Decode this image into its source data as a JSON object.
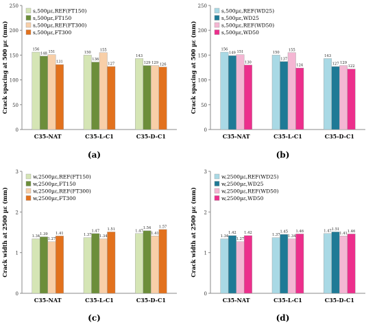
{
  "chart_data": [
    {
      "type": "bar",
      "panel_label": "(a)",
      "categories": [
        "C35-NAT",
        "C35-L-C1",
        "C35-D-C1"
      ],
      "ylabel": "Crack spacing at 500 µε (mm)",
      "xlabel": "",
      "ylim": [
        0,
        250
      ],
      "yticks": [
        "0",
        "50",
        "100",
        "150",
        "200",
        "250"
      ],
      "legend_position": "top-left",
      "series": [
        {
          "name": "s,500µε,REF(FT150)",
          "values": [
            156,
            150,
            143
          ],
          "labels": [
            "156",
            "150",
            "143"
          ],
          "color": "#d5e5b5"
        },
        {
          "name": "s,500µε,FT150",
          "values": [
            148,
            136,
            129
          ],
          "labels": [
            "148",
            "136",
            "129"
          ],
          "color": "#6c8e3a"
        },
        {
          "name": "s,500µε,REF(FT300)",
          "values": [
            151,
            155,
            129
          ],
          "labels": [
            "151",
            "155",
            "129"
          ],
          "color": "#f8cfa8"
        },
        {
          "name": "s,500µε,FT300",
          "values": [
            131,
            127,
            126
          ],
          "labels": [
            "131",
            "127",
            "126"
          ],
          "color": "#e2711d"
        }
      ]
    },
    {
      "type": "bar",
      "panel_label": "(b)",
      "categories": [
        "C35-NAT",
        "C35-L-C1",
        "C35-D-C1"
      ],
      "ylabel": "Crack spacing at 500 µε (mm)",
      "xlabel": "",
      "ylim": [
        0,
        250
      ],
      "yticks": [
        "0",
        "50",
        "100",
        "150",
        "200",
        "250"
      ],
      "legend_position": "top-left",
      "series": [
        {
          "name": "s,500µε,REF(WD25)",
          "values": [
            156,
            150,
            143
          ],
          "labels": [
            "156",
            "150",
            "143"
          ],
          "color": "#a9d9e5"
        },
        {
          "name": "s,500µε,WD25",
          "values": [
            149,
            137,
            127
          ],
          "labels": [
            "149",
            "137",
            "127"
          ],
          "color": "#1f7a96"
        },
        {
          "name": "s,500µε,REF(WD50)",
          "values": [
            151,
            155,
            129
          ],
          "labels": [
            "151",
            "155",
            "129"
          ],
          "color": "#f4b6d3"
        },
        {
          "name": "s,500µε,WD50",
          "values": [
            130,
            124,
            122
          ],
          "labels": [
            "130",
            "124",
            "122"
          ],
          "color": "#ec2f8c"
        }
      ]
    },
    {
      "type": "bar",
      "panel_label": "(c)",
      "categories": [
        "C35-NAT",
        "C35-L-C1",
        "C35-D-C1"
      ],
      "ylabel": "Crack width at 2500 µε (mm)",
      "xlabel": "",
      "ylim": [
        0,
        3
      ],
      "yticks": [
        "0",
        "1",
        "2",
        "3"
      ],
      "legend_position": "top-left",
      "series": [
        {
          "name": "w,2500µε,REF(FT150)",
          "values": [
            1.34,
            1.37,
            1.47
          ],
          "labels": [
            "1.34",
            "1.37",
            "1.47"
          ],
          "color": "#d5e5b5"
        },
        {
          "name": "w,2500µε,FT150",
          "values": [
            1.39,
            1.47,
            1.54
          ],
          "labels": [
            "1.39",
            "1.47",
            "1.54"
          ],
          "color": "#6c8e3a"
        },
        {
          "name": "w,2500µε,REF(FT300)",
          "values": [
            1.27,
            1.34,
            1.41
          ],
          "labels": [
            "1.27",
            "1.34",
            "1.41"
          ],
          "color": "#f8cfa8"
        },
        {
          "name": "w,2500µε,FT300",
          "values": [
            1.41,
            1.51,
            1.57
          ],
          "labels": [
            "1.41",
            "1.51",
            "1.57"
          ],
          "color": "#e2711d"
        }
      ]
    },
    {
      "type": "bar",
      "panel_label": "(d)",
      "categories": [
        "C35-NAT",
        "C35-L-C1",
        "C35-D-C1"
      ],
      "ylabel": "Crack width at 2500 µε (mm)",
      "xlabel": "",
      "ylim": [
        0,
        3
      ],
      "yticks": [
        "0",
        "1",
        "2",
        "3"
      ],
      "legend_position": "top-left",
      "series": [
        {
          "name": "w,2500µε,REF(WD25)",
          "values": [
            1.34,
            1.37,
            1.47
          ],
          "labels": [
            "1.34",
            "1.37",
            "1.47"
          ],
          "color": "#a9d9e5"
        },
        {
          "name": "w,2500µε,WD25",
          "values": [
            1.42,
            1.45,
            1.51
          ],
          "labels": [
            "1.42",
            "1.45",
            "1.51"
          ],
          "color": "#1f7a96"
        },
        {
          "name": "w,2500µε,REF(WD50)",
          "values": [
            1.27,
            1.34,
            1.41
          ],
          "labels": [
            "1.27",
            "1.34",
            "1.41"
          ],
          "color": "#f4b6d3"
        },
        {
          "name": "w,2500µε,WD50",
          "values": [
            1.42,
            1.46,
            1.46
          ],
          "labels": [
            "1.42",
            "1.46",
            "1.46"
          ],
          "color": "#ec2f8c"
        }
      ]
    }
  ]
}
